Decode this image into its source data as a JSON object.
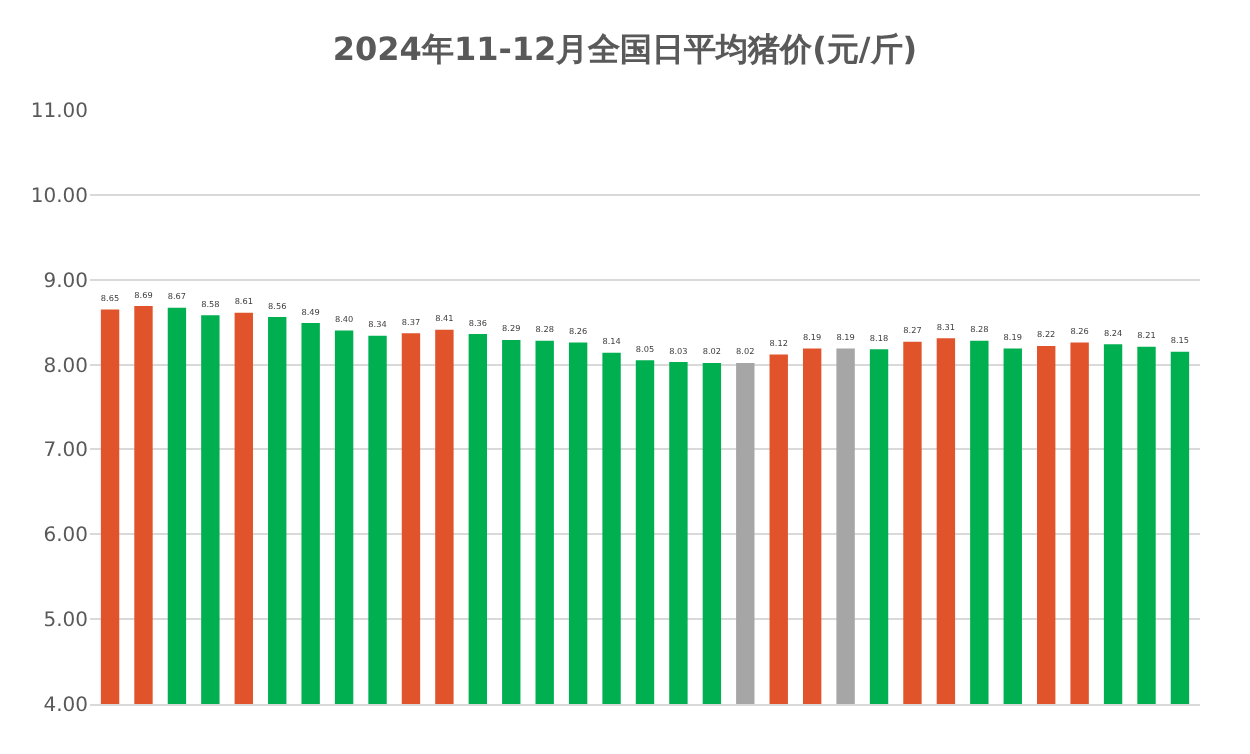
{
  "chart_data": {
    "type": "bar",
    "title": "2024年11-12月全国日平均猪价(元/斤)",
    "categories": [
      null,
      null,
      null,
      null,
      null,
      null,
      null,
      null,
      null,
      null,
      null,
      null,
      null,
      null,
      null,
      null,
      null,
      null,
      null,
      null,
      null,
      null,
      null,
      null,
      null,
      null,
      null,
      null,
      null,
      null,
      null,
      null,
      null
    ],
    "values": [
      8.65,
      8.69,
      8.67,
      8.58,
      8.61,
      8.56,
      8.49,
      8.4,
      8.34,
      8.37,
      8.41,
      8.36,
      8.29,
      8.28,
      8.26,
      8.14,
      8.05,
      8.03,
      8.02,
      8.02,
      8.12,
      8.19,
      8.19,
      8.18,
      8.27,
      8.31,
      8.28,
      8.19,
      8.22,
      8.26,
      8.24,
      8.21,
      8.15
    ],
    "value_labels": [
      "8.65",
      "8.69",
      "8.67",
      "8.58",
      "8.61",
      "8.56",
      "8.49",
      "8.40",
      "8.34",
      "8.37",
      "8.41",
      "8.36",
      "8.29",
      "8.28",
      "8.26",
      "8.14",
      "8.05",
      "8.03",
      "8.02",
      "8.02",
      "8.12",
      "8.19",
      "8.19",
      "8.18",
      "8.27",
      "8.31",
      "8.28",
      "8.19",
      "8.22",
      "8.26",
      "8.24",
      "8.21",
      "8.15"
    ],
    "colors": [
      "#e0532b",
      "#e0532b",
      "#00b050",
      "#00b050",
      "#e0532b",
      "#00b050",
      "#00b050",
      "#00b050",
      "#00b050",
      "#e0532b",
      "#e0532b",
      "#00b050",
      "#00b050",
      "#00b050",
      "#00b050",
      "#00b050",
      "#00b050",
      "#00b050",
      "#00b050",
      "#a6a6a6",
      "#e0532b",
      "#e0532b",
      "#a6a6a6",
      "#00b050",
      "#e0532b",
      "#e0532b",
      "#00b050",
      "#00b050",
      "#e0532b",
      "#e0532b",
      "#00b050",
      "#00b050",
      "#00b050"
    ],
    "ylim": [
      4,
      11
    ],
    "yticks": [
      {
        "value": 4,
        "label": "4.00"
      },
      {
        "value": 5,
        "label": "5.00"
      },
      {
        "value": 6,
        "label": "6.00"
      },
      {
        "value": 7,
        "label": "7.00"
      },
      {
        "value": 8,
        "label": "8.00"
      },
      {
        "value": 9,
        "label": "9.00"
      },
      {
        "value": 10,
        "label": "10.00"
      },
      {
        "value": 11,
        "label": "11.00"
      }
    ],
    "grid": "y",
    "legend": false
  }
}
